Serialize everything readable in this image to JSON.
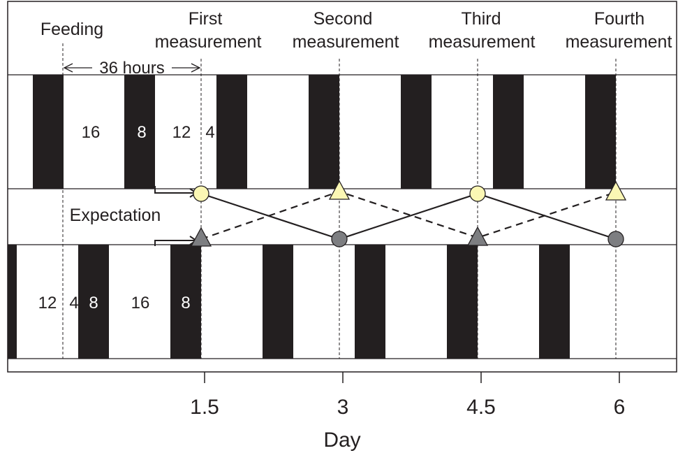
{
  "header_labels": {
    "feeding": "Feeding",
    "first_line1": "First",
    "first_line2": "measurement",
    "second_line1": "Second",
    "second_line2": "measurement",
    "third_line1": "Third",
    "third_line2": "measurement",
    "fourth_line1": "Fourth",
    "fourth_line2": "measurement"
  },
  "interval_label": "36 hours",
  "expectation_label": "Expectation",
  "top_schedule_numbers": [
    "16",
    "8",
    "12",
    "4"
  ],
  "bottom_schedule_numbers": [
    "12",
    "4",
    "8",
    "16",
    "8"
  ],
  "x_axis": {
    "label": "Day",
    "ticks": [
      "1.5",
      "3",
      "4.5",
      "6"
    ]
  },
  "colors": {
    "dark_band": "#231f20",
    "light_marker": "#fbf7b4",
    "dark_marker": "#7d7e81",
    "line": "#231f20"
  },
  "markers": {
    "solid_line_series": [
      "circle-light",
      "circle-dark",
      "circle-light",
      "circle-dark"
    ],
    "dashed_line_series": [
      "triangle-dark",
      "triangle-light",
      "triangle-dark",
      "triangle-light"
    ]
  }
}
